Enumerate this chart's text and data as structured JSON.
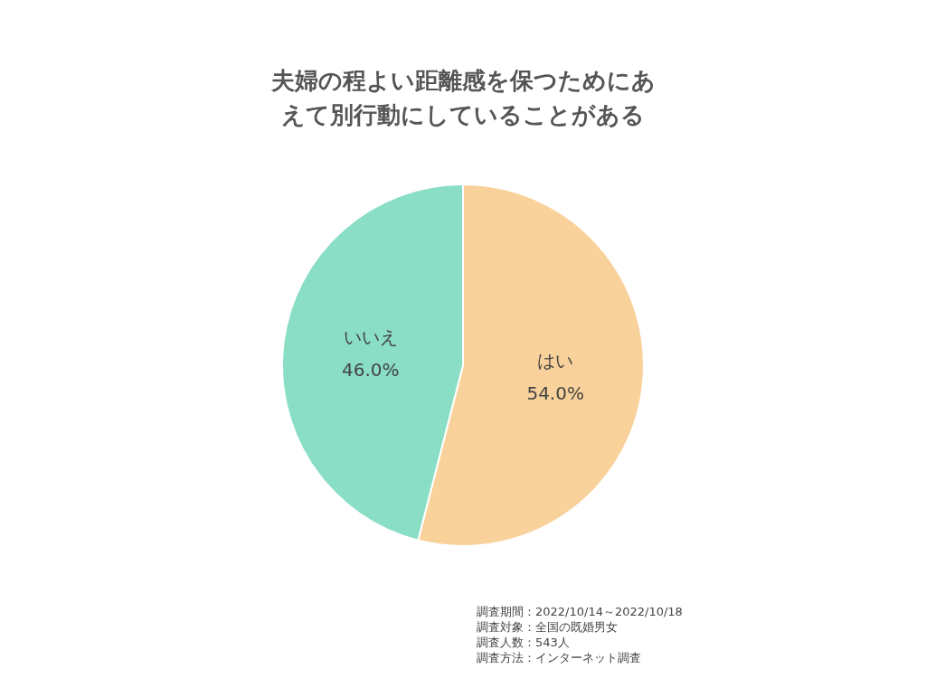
{
  "chart_data": {
    "type": "pie",
    "title": "夫婦の程よい距離感を保つためにあえて別行動にしていることがある",
    "categories": [
      "はい",
      "いいえ"
    ],
    "values": [
      54,
      46
    ],
    "colors": [
      "#f9d19a",
      "#89dec5"
    ],
    "value_labels": [
      "54.0%",
      "46.0%"
    ],
    "annotations": [
      "調査期間：2022/10/14～2022/10/18",
      "調査対象：全国の既婚男女",
      "調査人数：543人",
      "調査方法：インターネット調査"
    ]
  }
}
